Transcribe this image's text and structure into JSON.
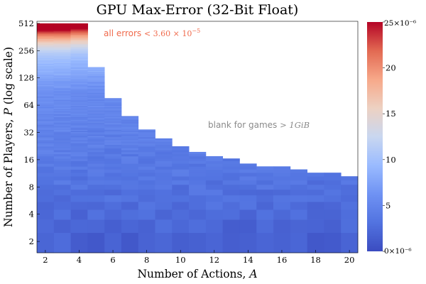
{
  "chart_data": {
    "type": "heatmap",
    "title": "GPU Max-Error (32-Bit Float)",
    "xlabel": "Number of Actions, A",
    "xlabel_main": "Number of Actions, ",
    "xlabel_var": "A",
    "ylabel": "Number of Players, P (log scale)",
    "ylabel_main": "Number of Players, ",
    "ylabel_var": "P",
    "ylabel_suffix": " (log scale)",
    "x_range": [
      1.5,
      20.5
    ],
    "y_scale": "log2",
    "y_range": [
      1.5,
      540
    ],
    "x_ticks": [
      "2",
      "4",
      "6",
      "8",
      "10",
      "12",
      "14",
      "16",
      "18",
      "20"
    ],
    "x_tick_values": [
      2,
      4,
      6,
      8,
      10,
      12,
      14,
      16,
      18,
      20
    ],
    "y_ticks": [
      "2",
      "4",
      "8",
      "16",
      "32",
      "64",
      "128",
      "256",
      "512"
    ],
    "y_tick_values": [
      2,
      4,
      8,
      16,
      32,
      64,
      128,
      256,
      512
    ],
    "max_players_per_action": [
      {
        "actions": 2,
        "max_players": 512
      },
      {
        "actions": 3,
        "max_players": 512
      },
      {
        "actions": 4,
        "max_players": 512
      },
      {
        "actions": 5,
        "max_players": 168
      },
      {
        "actions": 6,
        "max_players": 76
      },
      {
        "actions": 7,
        "max_players": 48
      },
      {
        "actions": 8,
        "max_players": 34
      },
      {
        "actions": 9,
        "max_players": 27
      },
      {
        "actions": 10,
        "max_players": 22
      },
      {
        "actions": 11,
        "max_players": 19
      },
      {
        "actions": 12,
        "max_players": 17
      },
      {
        "actions": 13,
        "max_players": 16
      },
      {
        "actions": 14,
        "max_players": 14
      },
      {
        "actions": 15,
        "max_players": 13
      },
      {
        "actions": 16,
        "max_players": 13
      },
      {
        "actions": 17,
        "max_players": 12
      },
      {
        "actions": 18,
        "max_players": 11
      },
      {
        "actions": 19,
        "max_players": 11
      },
      {
        "actions": 20,
        "max_players": 10
      }
    ],
    "colorbar": {
      "colormap": "coolwarm",
      "min": 0,
      "max": 25,
      "unit_multiplier": "×10⁻⁶",
      "ticks": [
        "0",
        "5",
        "10",
        "15",
        "20",
        "25"
      ],
      "tick_values": [
        0,
        5,
        10,
        15,
        20,
        25
      ],
      "top_label": "25×10⁻⁶",
      "bottom_label": "0×10⁻⁶"
    },
    "annotations": [
      {
        "prefix": "all errors ",
        "math": "< 3.60 × 10",
        "exponent": "−5",
        "color": "#f06a4c"
      },
      {
        "prefix": "blank for games ",
        "math": "> 1GiB",
        "exponent": "",
        "color": "#8a8a8a"
      }
    ]
  }
}
